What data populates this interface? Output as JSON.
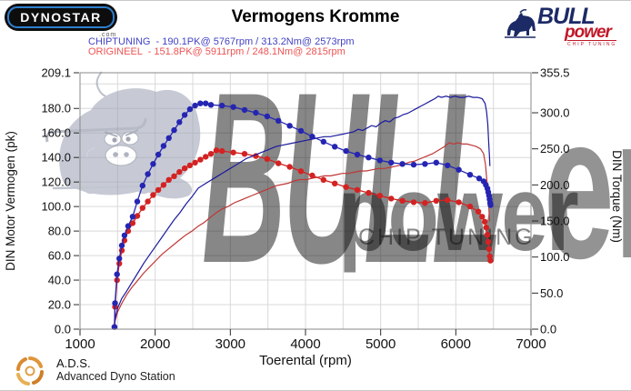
{
  "header": {
    "dynostar_text": "DYNOSTAR",
    "dynostar_domain": ".com",
    "title": "Vermogens Kromme",
    "bullpower_logo": {
      "line1": "BULL",
      "line2": "power",
      "line3": "CHIP TUNING"
    },
    "legend": [
      {
        "label": "CHIPTUNING  - 190.1PK@ 5767rpm / 313.2Nm@ 2573rpm",
        "color": "#4343c4"
      },
      {
        "label": "ORIGINEEL  - 151.8PK@ 5911rpm / 248.1Nm@ 2815rpm",
        "color": "#ef5353"
      }
    ]
  },
  "footer": {
    "ads_abbr": "A.D.S.",
    "ads_name": "Advanced Dyno Station"
  },
  "watermarks": {
    "bull": "BULL",
    "power": "power",
    "er": "er",
    "chip_tuning": "CHIP TUNING"
  },
  "chart_data": {
    "type": "line",
    "title": "Vermogens Kromme",
    "xlabel": "Toerental (rpm)",
    "ylabel_left": "DIN Motor Vermogen (pk)",
    "ylabel_right": "DIN Torque (Nm)",
    "xlim": [
      1000,
      7000
    ],
    "ylim_left": [
      0,
      209.1
    ],
    "ylim_right": [
      0,
      355.5
    ],
    "x_ticks": [
      1000,
      2000,
      3000,
      4000,
      5000,
      6000,
      7000
    ],
    "left_ticks": [
      0,
      20,
      40,
      60,
      80,
      100,
      120,
      140,
      160,
      180,
      209.1
    ],
    "right_ticks": [
      0,
      50,
      100,
      150,
      200,
      250,
      300,
      355.5
    ],
    "grid": {
      "x_minor_step_rpm": 500,
      "y_left_step": 20,
      "color": "#d9d9d9"
    },
    "peaks": {
      "chiptuning": {
        "power_pk": 190.1,
        "power_rpm": 5767,
        "torque_nm": 313.2,
        "torque_rpm": 2573
      },
      "origineel": {
        "power_pk": 151.8,
        "power_rpm": 5911,
        "torque_nm": 248.1,
        "torque_rpm": 2815
      }
    },
    "series": [
      {
        "name": "origineel-power",
        "axis": "left",
        "unit": "pk",
        "style": "line",
        "color": "#c03636",
        "points": [
          [
            1458,
            0
          ],
          [
            1465,
            6
          ],
          [
            1500,
            14
          ],
          [
            1555,
            21
          ],
          [
            1620,
            28
          ],
          [
            1690,
            34
          ],
          [
            1770,
            40
          ],
          [
            1850,
            46
          ],
          [
            1930,
            51
          ],
          [
            2010,
            56
          ],
          [
            2090,
            61
          ],
          [
            2170,
            65
          ],
          [
            2250,
            69
          ],
          [
            2330,
            73
          ],
          [
            2410,
            77
          ],
          [
            2490,
            80
          ],
          [
            2573,
            84
          ],
          [
            2650,
            87
          ],
          [
            2730,
            91
          ],
          [
            2815,
            95
          ],
          [
            2890,
            98
          ],
          [
            2970,
            100
          ],
          [
            3050,
            103
          ],
          [
            3130,
            105
          ],
          [
            3210,
            107
          ],
          [
            3290,
            109
          ],
          [
            3370,
            111
          ],
          [
            3450,
            113
          ],
          [
            3530,
            115
          ],
          [
            3610,
            117
          ],
          [
            3690,
            118
          ],
          [
            3770,
            119
          ],
          [
            3850,
            121
          ],
          [
            3930,
            122
          ],
          [
            4010,
            122
          ],
          [
            4090,
            123
          ],
          [
            4170,
            124
          ],
          [
            4250,
            125
          ],
          [
            4330,
            125
          ],
          [
            4410,
            126
          ],
          [
            4490,
            127
          ],
          [
            4570,
            127
          ],
          [
            4650,
            128
          ],
          [
            4730,
            129
          ],
          [
            4810,
            129
          ],
          [
            4890,
            130
          ],
          [
            4970,
            131
          ],
          [
            5050,
            131
          ],
          [
            5130,
            132
          ],
          [
            5210,
            133
          ],
          [
            5290,
            134
          ],
          [
            5370,
            136
          ],
          [
            5450,
            137
          ],
          [
            5530,
            139
          ],
          [
            5610,
            141
          ],
          [
            5690,
            143
          ],
          [
            5770,
            146
          ],
          [
            5850,
            149
          ],
          [
            5911,
            152
          ],
          [
            5970,
            151
          ],
          [
            6030,
            152
          ],
          [
            6090,
            151
          ],
          [
            6150,
            151
          ],
          [
            6210,
            150
          ],
          [
            6270,
            149
          ],
          [
            6330,
            147
          ],
          [
            6370,
            143
          ],
          [
            6395,
            134
          ],
          [
            6415,
            120
          ],
          [
            6435,
            103
          ],
          [
            6450,
            88
          ]
        ]
      },
      {
        "name": "origineel-torque",
        "axis": "right",
        "unit": "Nm",
        "style": "line+markers",
        "color": "#d42222",
        "points": [
          [
            1458,
            3
          ],
          [
            1466,
            31
          ],
          [
            1492,
            68
          ],
          [
            1522,
            91
          ],
          [
            1556,
            109
          ],
          [
            1592,
            123
          ],
          [
            1640,
            136
          ],
          [
            1700,
            147
          ],
          [
            1762,
            157
          ],
          [
            1832,
            168
          ],
          [
            1902,
            177
          ],
          [
            1972,
            186
          ],
          [
            2042,
            193
          ],
          [
            2112,
            200
          ],
          [
            2182,
            207
          ],
          [
            2252,
            212
          ],
          [
            2322,
            218
          ],
          [
            2392,
            223
          ],
          [
            2462,
            227
          ],
          [
            2532,
            231
          ],
          [
            2602,
            235
          ],
          [
            2672,
            239
          ],
          [
            2742,
            243
          ],
          [
            2815,
            248
          ],
          [
            2890,
            247
          ],
          [
            3040,
            245
          ],
          [
            3190,
            243
          ],
          [
            3340,
            240
          ],
          [
            3490,
            236
          ],
          [
            3640,
            230
          ],
          [
            3790,
            225
          ],
          [
            3940,
            219
          ],
          [
            4090,
            213
          ],
          [
            4240,
            207
          ],
          [
            4390,
            202
          ],
          [
            4540,
            197
          ],
          [
            4690,
            193
          ],
          [
            4840,
            189
          ],
          [
            4990,
            185
          ],
          [
            5140,
            181
          ],
          [
            5290,
            178
          ],
          [
            5440,
            176
          ],
          [
            5590,
            175
          ],
          [
            5740,
            178
          ],
          [
            5890,
            179
          ],
          [
            6040,
            176
          ],
          [
            6190,
            170
          ],
          [
            6300,
            163
          ],
          [
            6350,
            156
          ],
          [
            6385,
            149
          ],
          [
            6405,
            141
          ],
          [
            6420,
            131
          ],
          [
            6432,
            121
          ],
          [
            6442,
            111
          ],
          [
            6452,
            101
          ],
          [
            6460,
            95
          ]
        ]
      },
      {
        "name": "chiptuning-power",
        "axis": "left",
        "unit": "pk",
        "style": "line",
        "color": "#1a1a9e",
        "points": [
          [
            1458,
            0
          ],
          [
            1465,
            8
          ],
          [
            1500,
            17
          ],
          [
            1555,
            25
          ],
          [
            1620,
            31
          ],
          [
            1690,
            38
          ],
          [
            1770,
            46
          ],
          [
            1850,
            54
          ],
          [
            1930,
            61
          ],
          [
            2010,
            68
          ],
          [
            2090,
            75
          ],
          [
            2170,
            82
          ],
          [
            2250,
            89
          ],
          [
            2330,
            95
          ],
          [
            2410,
            102
          ],
          [
            2490,
            108
          ],
          [
            2573,
            115
          ],
          [
            2650,
            118
          ],
          [
            2730,
            121
          ],
          [
            2810,
            124
          ],
          [
            2890,
            127
          ],
          [
            2970,
            130
          ],
          [
            3050,
            133
          ],
          [
            3130,
            136
          ],
          [
            3210,
            139
          ],
          [
            3290,
            141
          ],
          [
            3370,
            143
          ],
          [
            3450,
            145
          ],
          [
            3530,
            147
          ],
          [
            3610,
            149
          ],
          [
            3690,
            150
          ],
          [
            3770,
            151
          ],
          [
            3850,
            152
          ],
          [
            3930,
            153
          ],
          [
            4010,
            154
          ],
          [
            4090,
            155
          ],
          [
            4170,
            156
          ],
          [
            4250,
            157
          ],
          [
            4330,
            157
          ],
          [
            4410,
            158
          ],
          [
            4490,
            159
          ],
          [
            4570,
            160
          ],
          [
            4640,
            161
          ],
          [
            4700,
            163
          ],
          [
            4760,
            162
          ],
          [
            4820,
            164
          ],
          [
            4880,
            166
          ],
          [
            4940,
            165
          ],
          [
            5000,
            168
          ],
          [
            5060,
            170
          ],
          [
            5120,
            169
          ],
          [
            5180,
            172
          ],
          [
            5240,
            173
          ],
          [
            5300,
            175
          ],
          [
            5360,
            176
          ],
          [
            5420,
            178
          ],
          [
            5480,
            180
          ],
          [
            5540,
            182
          ],
          [
            5600,
            184
          ],
          [
            5660,
            186
          ],
          [
            5720,
            188
          ],
          [
            5767,
            190
          ],
          [
            5810,
            189
          ],
          [
            5870,
            190
          ],
          [
            5930,
            189
          ],
          [
            5990,
            190
          ],
          [
            6050,
            189
          ],
          [
            6110,
            189
          ],
          [
            6170,
            190
          ],
          [
            6230,
            189
          ],
          [
            6290,
            189
          ],
          [
            6350,
            188
          ],
          [
            6390,
            184
          ],
          [
            6410,
            177
          ],
          [
            6425,
            167
          ],
          [
            6438,
            152
          ],
          [
            6448,
            140
          ],
          [
            6453,
            133
          ]
        ]
      },
      {
        "name": "chiptuning-torque",
        "axis": "right",
        "unit": "Nm",
        "style": "line+markers",
        "color": "#2525b2",
        "points": [
          [
            1458,
            3
          ],
          [
            1466,
            36
          ],
          [
            1492,
            76
          ],
          [
            1522,
            98
          ],
          [
            1556,
            116
          ],
          [
            1592,
            130
          ],
          [
            1640,
            143
          ],
          [
            1700,
            156
          ],
          [
            1762,
            177
          ],
          [
            1832,
            199
          ],
          [
            1902,
            215
          ],
          [
            1972,
            229
          ],
          [
            2042,
            242
          ],
          [
            2112,
            254
          ],
          [
            2182,
            265
          ],
          [
            2252,
            276
          ],
          [
            2322,
            287
          ],
          [
            2392,
            297
          ],
          [
            2462,
            305
          ],
          [
            2532,
            310
          ],
          [
            2600,
            313
          ],
          [
            2672,
            313
          ],
          [
            2742,
            311
          ],
          [
            2890,
            310
          ],
          [
            3040,
            308
          ],
          [
            3190,
            304
          ],
          [
            3340,
            300
          ],
          [
            3490,
            295
          ],
          [
            3640,
            289
          ],
          [
            3790,
            282
          ],
          [
            3940,
            275
          ],
          [
            4090,
            267
          ],
          [
            4240,
            260
          ],
          [
            4390,
            253
          ],
          [
            4540,
            247
          ],
          [
            4690,
            242
          ],
          [
            4840,
            238
          ],
          [
            4990,
            234
          ],
          [
            5140,
            231
          ],
          [
            5290,
            229
          ],
          [
            5440,
            228
          ],
          [
            5590,
            229
          ],
          [
            5740,
            231
          ],
          [
            5890,
            227
          ],
          [
            6040,
            221
          ],
          [
            6190,
            214
          ],
          [
            6310,
            209
          ],
          [
            6370,
            205
          ],
          [
            6400,
            200
          ],
          [
            6420,
            195
          ],
          [
            6432,
            190
          ],
          [
            6442,
            185
          ],
          [
            6450,
            180
          ],
          [
            6457,
            175
          ],
          [
            6462,
            172
          ]
        ]
      }
    ]
  }
}
